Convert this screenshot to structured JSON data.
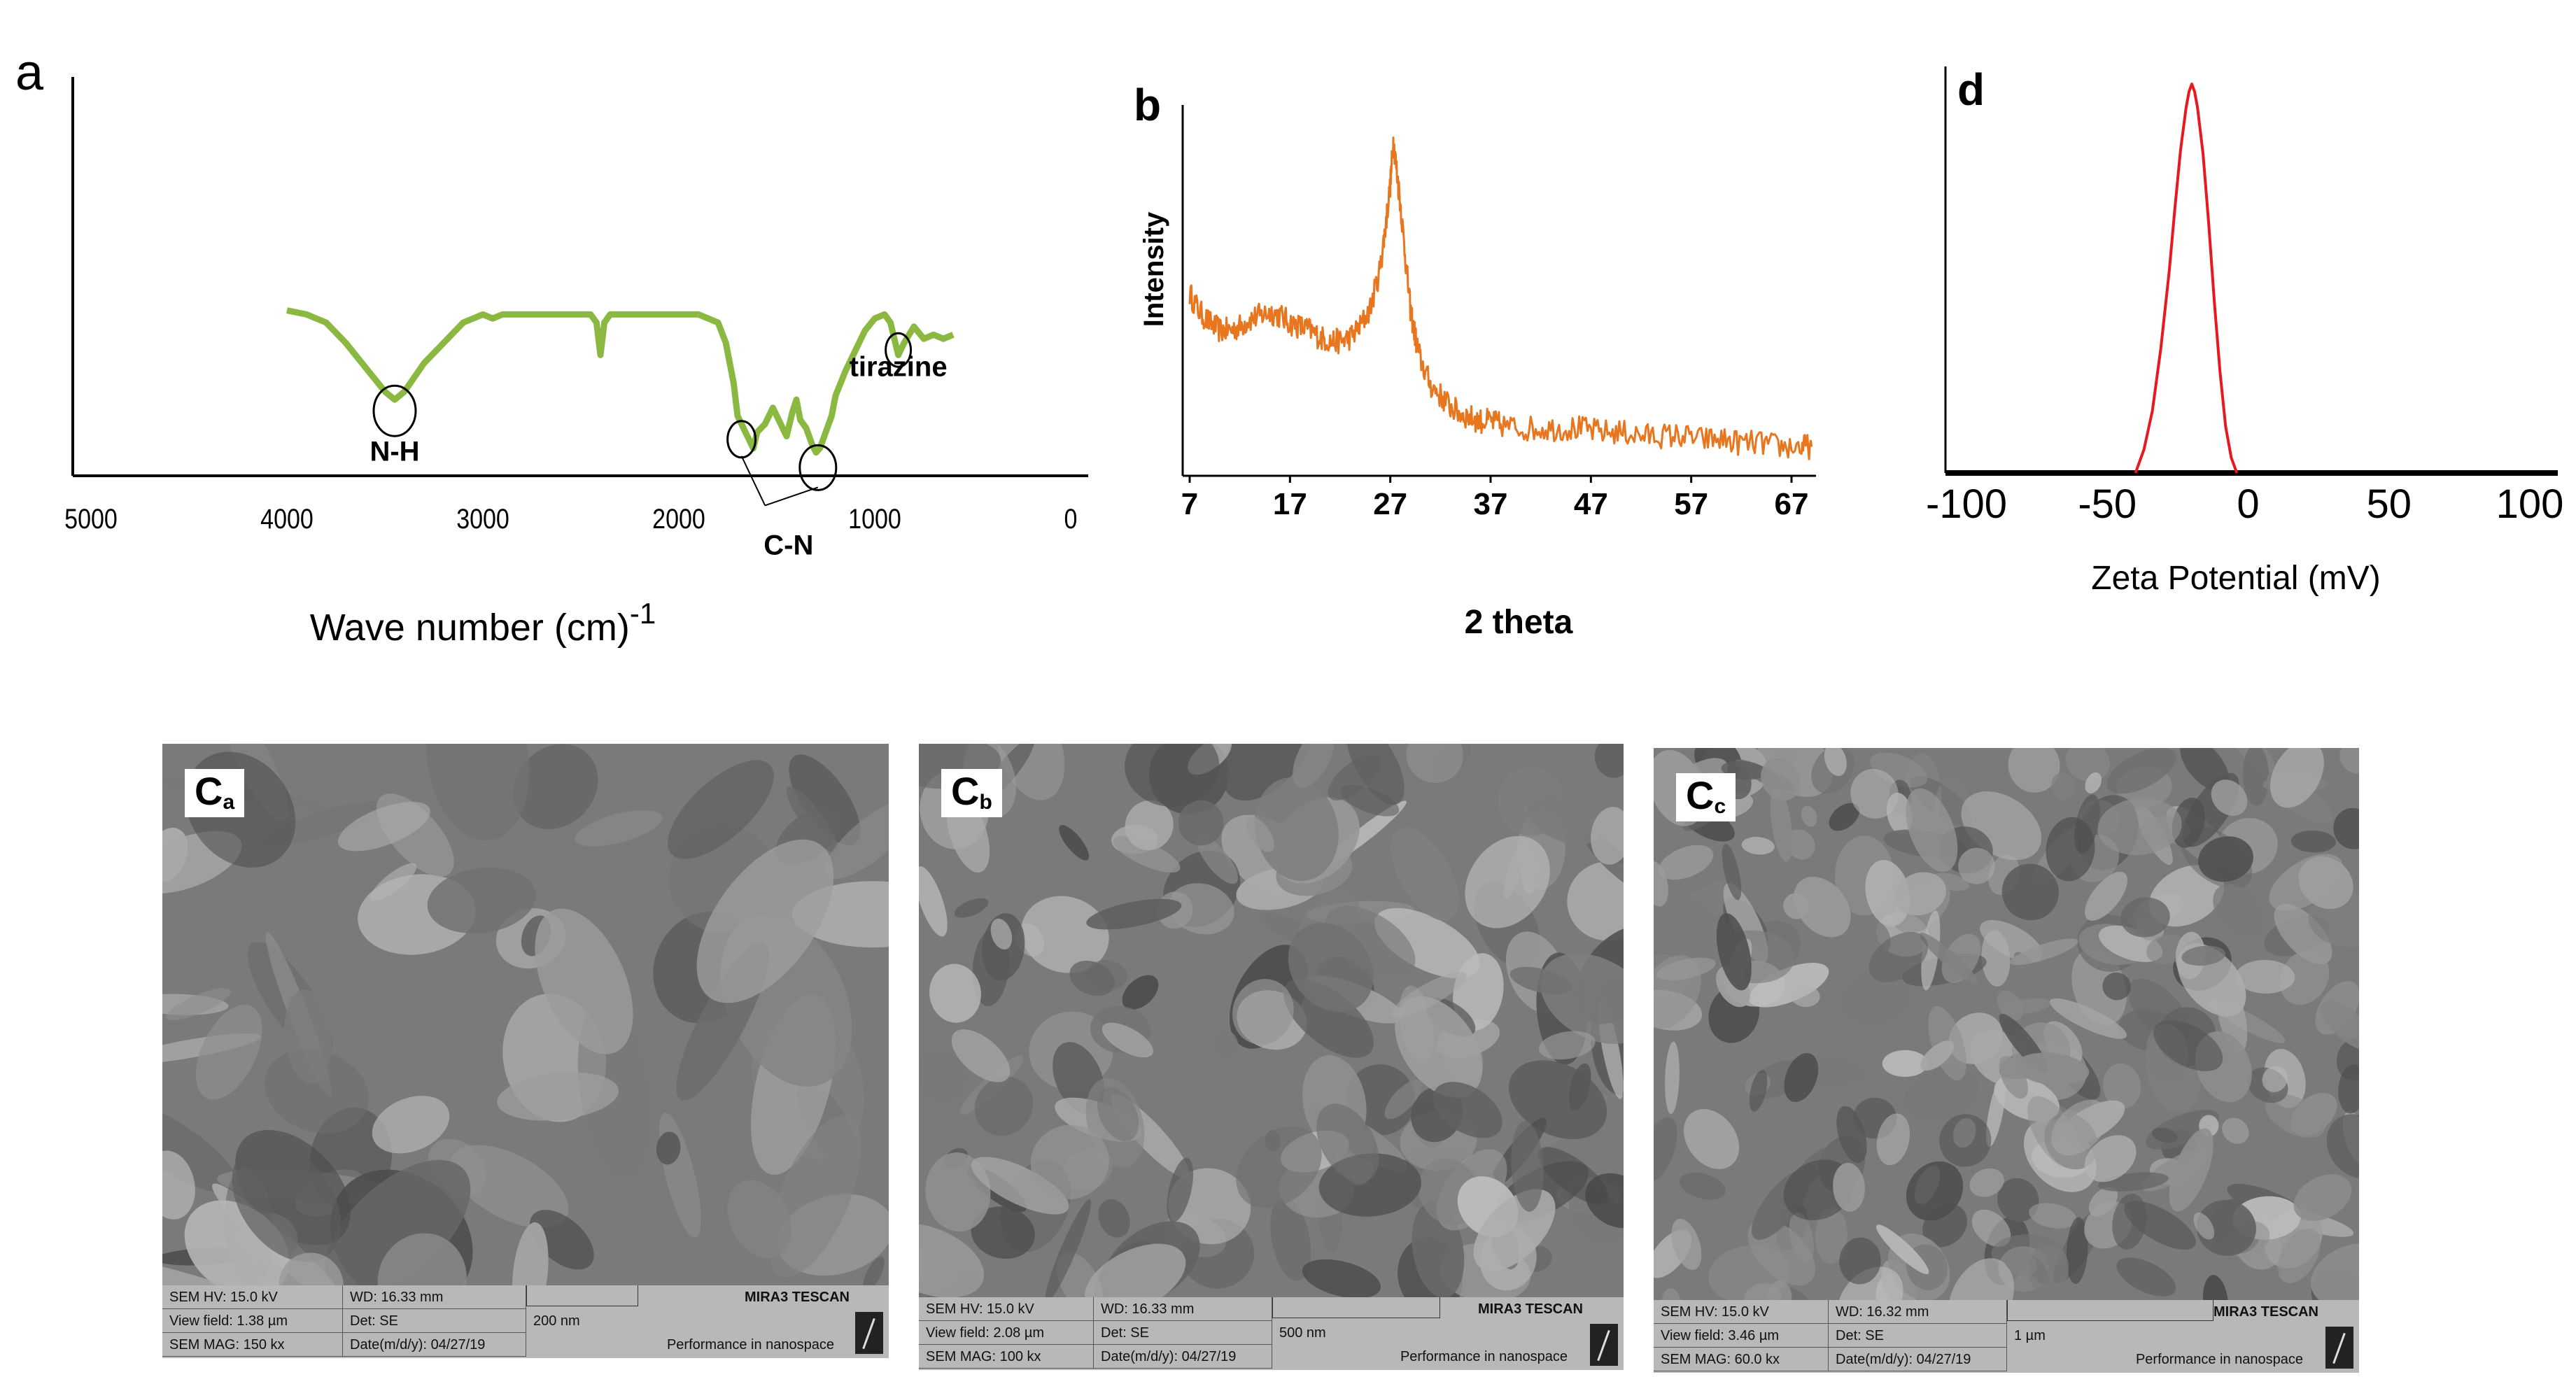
{
  "chart_data": [
    {
      "id": "a",
      "type": "line",
      "panel_label": "a",
      "xlabel": "Wave number (cm)",
      "xlabel_sup": "-1",
      "ylabel": "",
      "xlim": [
        5000,
        0
      ],
      "x_ticks": [
        "5000",
        "4000",
        "3000",
        "2000",
        "1000",
        "0"
      ],
      "x_tick_values": [
        5000,
        4000,
        3000,
        2000,
        1000,
        0
      ],
      "ylim": [
        0,
        1
      ],
      "color": "#8ab840",
      "series": [
        {
          "x": [
            4000,
            3900,
            3800,
            3700,
            3600,
            3500,
            3450,
            3400,
            3300,
            3200,
            3100,
            3000,
            2950,
            2900,
            2800,
            2700,
            2600,
            2500,
            2450,
            2420,
            2400,
            2380,
            2350,
            2300,
            2200,
            2100,
            2000,
            1900,
            1800,
            1760,
            1720,
            1700,
            1680,
            1650,
            1620,
            1600,
            1560,
            1520,
            1480,
            1450,
            1420,
            1400,
            1380,
            1350,
            1320,
            1300,
            1280,
            1250,
            1220,
            1200,
            1150,
            1100,
            1050,
            1000,
            950,
            920,
            900,
            880,
            850,
            800,
            750,
            700,
            650,
            600
          ],
          "y": [
            0.58,
            0.57,
            0.55,
            0.5,
            0.44,
            0.38,
            0.36,
            0.38,
            0.45,
            0.5,
            0.55,
            0.57,
            0.56,
            0.57,
            0.57,
            0.57,
            0.57,
            0.57,
            0.57,
            0.55,
            0.47,
            0.55,
            0.57,
            0.57,
            0.57,
            0.57,
            0.57,
            0.57,
            0.55,
            0.5,
            0.4,
            0.32,
            0.3,
            0.27,
            0.24,
            0.28,
            0.3,
            0.34,
            0.3,
            0.27,
            0.33,
            0.36,
            0.31,
            0.29,
            0.25,
            0.23,
            0.24,
            0.28,
            0.32,
            0.37,
            0.43,
            0.48,
            0.53,
            0.56,
            0.57,
            0.55,
            0.51,
            0.47,
            0.5,
            0.54,
            0.51,
            0.52,
            0.51,
            0.52
          ]
        }
      ],
      "annotations": [
        {
          "text": "N-H",
          "x": 3450,
          "y": 0.33
        },
        {
          "text": "C-N",
          "x": 1440,
          "y": 0.22
        },
        {
          "text": "tirazine",
          "x": 880,
          "y": 0.47
        }
      ]
    },
    {
      "id": "b",
      "type": "line",
      "panel_label": "b",
      "xlabel": "2 theta",
      "ylabel": "Intensity",
      "xlim": [
        7,
        70
      ],
      "x_ticks": [
        "7",
        "17",
        "27",
        "37",
        "47",
        "57",
        "67"
      ],
      "x_tick_values": [
        7,
        17,
        27,
        37,
        47,
        57,
        67
      ],
      "ylim": [
        0,
        1
      ],
      "color": "#e8761e",
      "noise_amplitude": 0.035,
      "series": [
        {
          "x": [
            7,
            8,
            9,
            10,
            11,
            12,
            13,
            14,
            15,
            16,
            17,
            18,
            19,
            20,
            21,
            22,
            23,
            24,
            25,
            26,
            26.5,
            27,
            27.3,
            27.6,
            28,
            28.5,
            29,
            29.5,
            30,
            31,
            32,
            33,
            34,
            35,
            36,
            37,
            38,
            40,
            42,
            44,
            46,
            48,
            50,
            52,
            54,
            56,
            58,
            60,
            62,
            64,
            66,
            68,
            69
          ],
          "y": [
            0.5,
            0.45,
            0.42,
            0.4,
            0.4,
            0.41,
            0.43,
            0.44,
            0.45,
            0.44,
            0.42,
            0.41,
            0.4,
            0.38,
            0.37,
            0.37,
            0.38,
            0.41,
            0.46,
            0.57,
            0.68,
            0.8,
            0.92,
            0.85,
            0.75,
            0.6,
            0.46,
            0.38,
            0.32,
            0.25,
            0.22,
            0.19,
            0.17,
            0.16,
            0.15,
            0.15,
            0.14,
            0.13,
            0.13,
            0.13,
            0.13,
            0.12,
            0.12,
            0.11,
            0.11,
            0.11,
            0.1,
            0.1,
            0.09,
            0.09,
            0.08,
            0.08,
            0.08
          ]
        }
      ]
    },
    {
      "id": "d",
      "type": "line",
      "panel_label": "d",
      "xlabel": "Zeta Potential (mV)",
      "ylabel": "",
      "xlim": [
        -110,
        110
      ],
      "x_ticks": [
        "-100",
        "-50",
        "0",
        "50",
        "100"
      ],
      "x_tick_values": [
        -100,
        -50,
        0,
        50,
        100
      ],
      "ylim": [
        0,
        1
      ],
      "color": "#e8191e",
      "series": [
        {
          "x": [
            -40,
            -37,
            -34,
            -31,
            -28,
            -26,
            -24,
            -22,
            -21,
            -20,
            -19,
            -18,
            -16,
            -14,
            -12,
            -10,
            -8,
            -6,
            -4
          ],
          "y": [
            0.0,
            0.06,
            0.16,
            0.32,
            0.52,
            0.68,
            0.83,
            0.94,
            0.98,
            1.0,
            0.98,
            0.94,
            0.82,
            0.64,
            0.44,
            0.26,
            0.12,
            0.04,
            0.0
          ]
        }
      ]
    }
  ],
  "sem_images": [
    {
      "id": "Ca",
      "label_main": "C",
      "label_sub": "a",
      "hv": "SEM HV: 15.0 kV",
      "wd": "WD: 16.33 mm",
      "view_field": "View field: 1.38 µm",
      "det": "Det: SE",
      "scale": "200 nm",
      "mag": "SEM MAG: 150 kx",
      "date": "Date(m/d/y): 04/27/19",
      "brand": "MIRA3 TESCAN",
      "slogan": "Performance in nanospace"
    },
    {
      "id": "Cb",
      "label_main": "C",
      "label_sub": "b",
      "hv": "SEM HV: 15.0 kV",
      "wd": "WD: 16.33 mm",
      "view_field": "View field: 2.08 µm",
      "det": "Det: SE",
      "scale": "500 nm",
      "mag": "SEM MAG: 100 kx",
      "date": "Date(m/d/y): 04/27/19",
      "brand": "MIRA3 TESCAN",
      "slogan": "Performance in nanospace"
    },
    {
      "id": "Cc",
      "label_main": "C",
      "label_sub": "c",
      "hv": "SEM HV: 15.0 kV",
      "wd": "WD: 16.32 mm",
      "view_field": "View field: 3.46 µm",
      "det": "Det: SE",
      "scale": "1 µm",
      "mag": "SEM MAG: 60.0 kx",
      "date": "Date(m/d/y): 04/27/19",
      "brand": "MIRA3 TESCAN",
      "slogan": "Performance in nanospace"
    }
  ]
}
